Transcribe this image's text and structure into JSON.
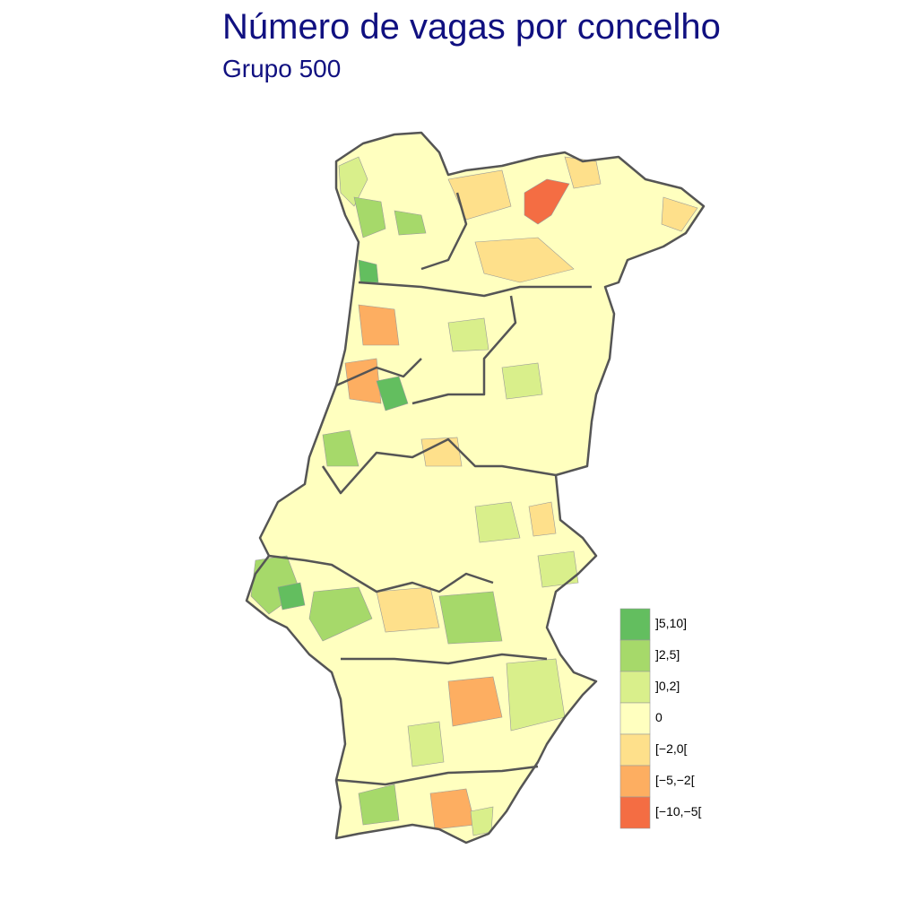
{
  "header": {
    "title": "Número de vagas por concelho",
    "subtitle": "Grupo 500"
  },
  "legend": {
    "items": [
      {
        "label": "]5,10]",
        "color": "#63be5f"
      },
      {
        "label": "]2,5]",
        "color": "#a6d96a"
      },
      {
        "label": "]0,2]",
        "color": "#d9ef8b"
      },
      {
        "label": "0",
        "color": "#ffffbf"
      },
      {
        "label": "[−2,0[",
        "color": "#fee08b"
      },
      {
        "label": "[−5,−2[",
        "color": "#fdae61"
      },
      {
        "label": "[−10,−5[",
        "color": "#f46d43"
      }
    ]
  }
}
